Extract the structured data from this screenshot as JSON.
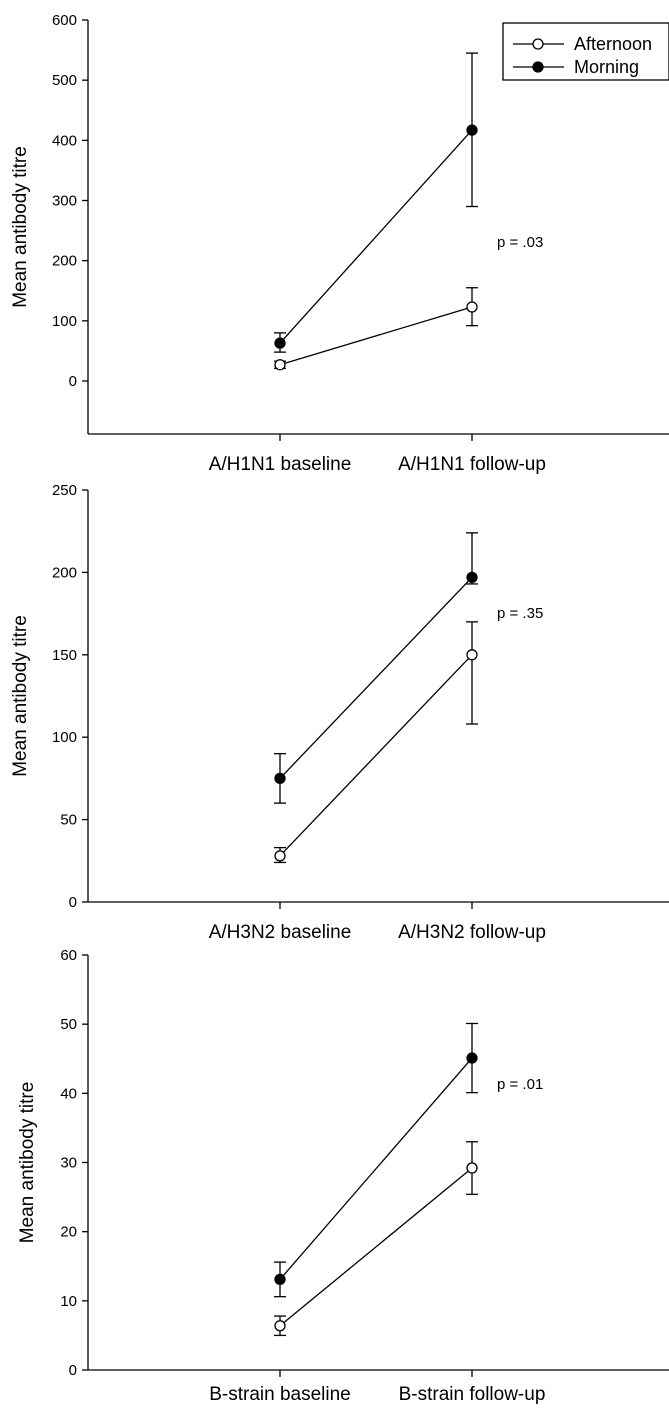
{
  "chart_data": [
    {
      "type": "line",
      "ylabel": "Mean antibody titre",
      "categories": [
        "A/H1N1 baseline",
        "A/H1N1 follow-up"
      ],
      "yticks": [
        0,
        100,
        200,
        300,
        400,
        500,
        600
      ],
      "ylim": [
        -105,
        600
      ],
      "annotation": "p = .03",
      "legend": {
        "position": "top-right",
        "entries": [
          "Afternoon",
          "Morning"
        ]
      },
      "series": [
        {
          "name": "Afternoon",
          "marker": "open-circle",
          "values": [
            27,
            123
          ],
          "err_low": [
            21,
            92
          ],
          "err_high": [
            33,
            155
          ]
        },
        {
          "name": "Morning",
          "marker": "filled-circle",
          "values": [
            63,
            417
          ],
          "err_low": [
            48,
            290
          ],
          "err_high": [
            80,
            545
          ]
        }
      ]
    },
    {
      "type": "line",
      "ylabel": "Mean antibody titre",
      "categories": [
        "A/H3N2 baseline",
        "A/H3N2 follow-up"
      ],
      "yticks": [
        0,
        50,
        100,
        150,
        200,
        250
      ],
      "ylim": [
        0,
        250
      ],
      "annotation": "p = .35",
      "series": [
        {
          "name": "Afternoon",
          "marker": "open-circle",
          "values": [
            28,
            150
          ],
          "err_low": [
            24,
            108
          ],
          "err_high": [
            33,
            170
          ]
        },
        {
          "name": "Morning",
          "marker": "filled-circle",
          "values": [
            75,
            197
          ],
          "err_low": [
            60,
            193
          ],
          "err_high": [
            90,
            224
          ]
        }
      ]
    },
    {
      "type": "line",
      "ylabel": "Mean antibody titre",
      "categories": [
        "B-strain baseline",
        "B-strain follow-up"
      ],
      "yticks": [
        0,
        10,
        20,
        30,
        40,
        50,
        60
      ],
      "ylim": [
        0,
        60
      ],
      "annotation": "p = .01",
      "series": [
        {
          "name": "Afternoon",
          "marker": "open-circle",
          "values": [
            6.4,
            29.2
          ],
          "err_low": [
            5.0,
            25.4
          ],
          "err_high": [
            7.8,
            33.0
          ]
        },
        {
          "name": "Morning",
          "marker": "filled-circle",
          "values": [
            13.1,
            45.1
          ],
          "err_low": [
            10.6,
            40.1
          ],
          "err_high": [
            15.6,
            50.1
          ]
        }
      ]
    }
  ]
}
